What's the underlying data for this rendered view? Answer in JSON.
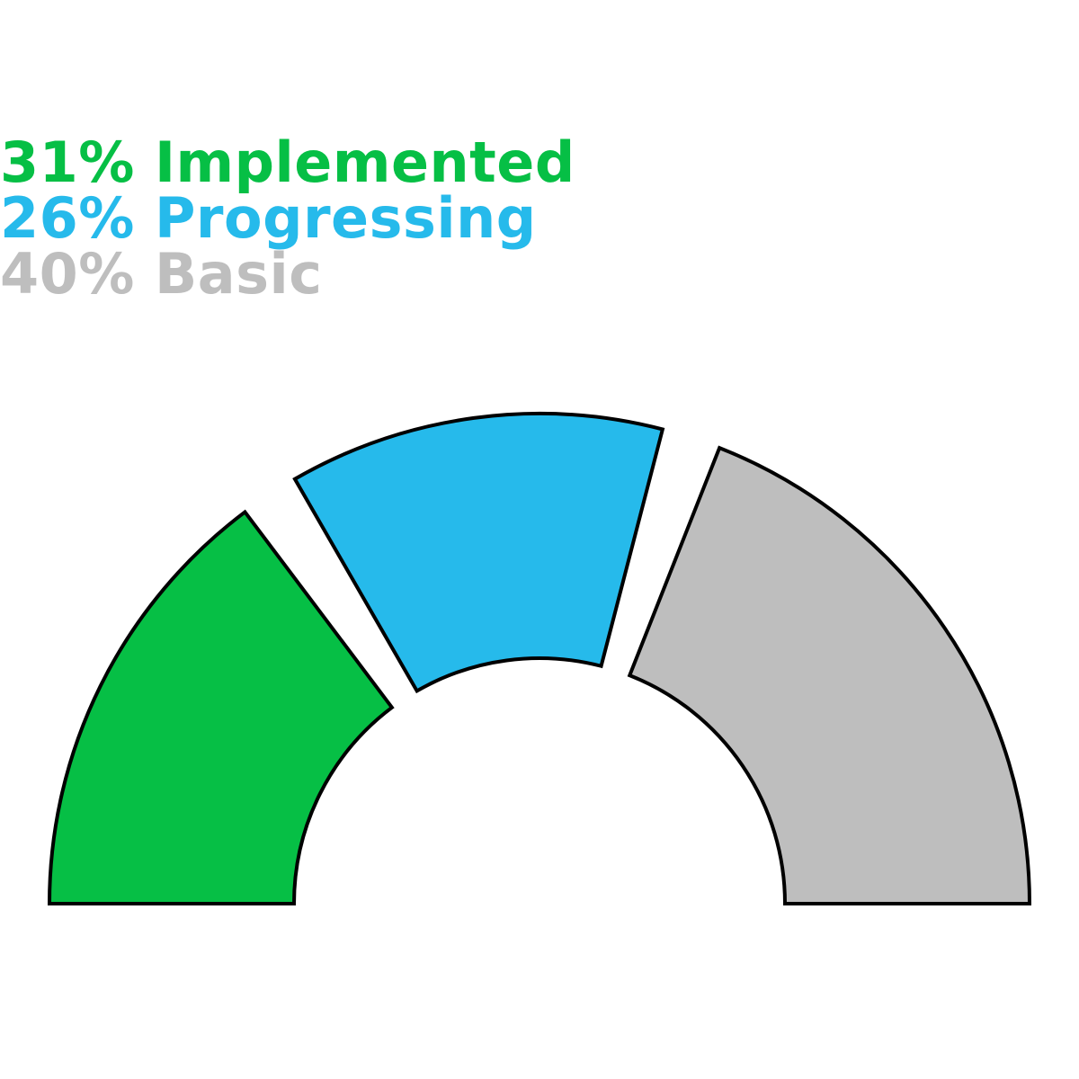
{
  "chart_data": {
    "type": "pie",
    "subtype": "semicircle-donut",
    "categories": [
      "Implemented",
      "Progressing",
      "Basic"
    ],
    "values": [
      31,
      26,
      40
    ],
    "unit": "%",
    "legend": [
      {
        "label": "31% Implemented",
        "color": "#06bf45"
      },
      {
        "label": "26% Progressing",
        "color": "#26baeb"
      },
      {
        "label": "40% Basic",
        "color": "#bebebe"
      }
    ],
    "legend_placement": "top-left",
    "colors": [
      "#06bf45",
      "#26baeb",
      "#bebebe"
    ],
    "outline_color": "#000000"
  }
}
